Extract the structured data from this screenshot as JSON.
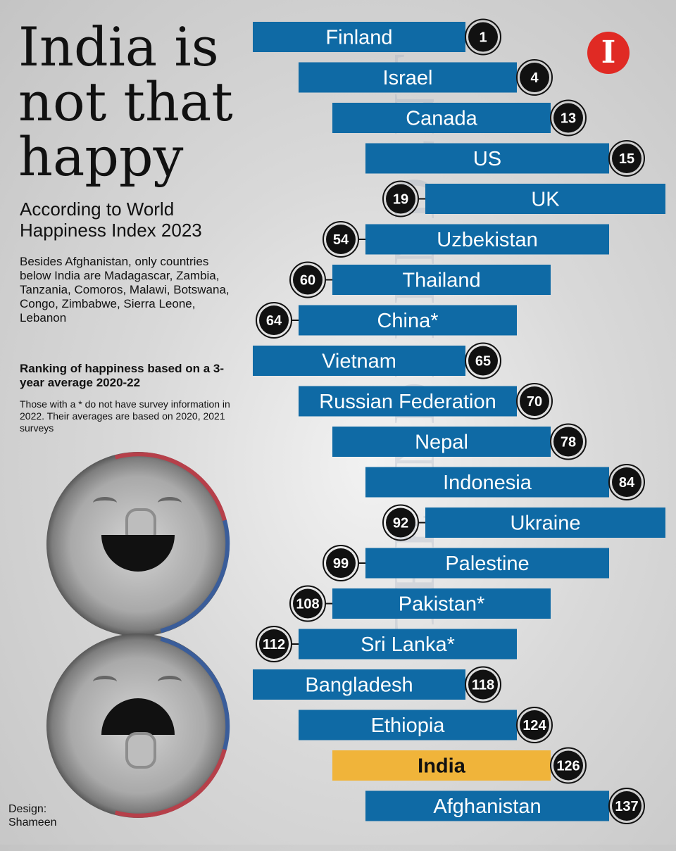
{
  "header": {
    "title": "India is not that happy",
    "subtitle": "According to World Happiness Index 2023",
    "note": "Besides Afghanistan, only countries below India are Madagascar, Zambia, Tanzania, Comoros, Malawi, Botswana, Congo, Zimbabwe, Sierra Leone, Lebanon",
    "method": "Ranking of happiness based on a 3-year average 2020-22",
    "footnote": "Those with a * do not have survey information in 2022. Their averages are based on 2020, 2021 surveys"
  },
  "credit": {
    "line1": "Design:",
    "line2": "Shameen"
  },
  "logo": {
    "letter": "I",
    "color": "#e02a24"
  },
  "watermark": "THE INDEPENDENT",
  "colors": {
    "bar": "#0f6aa5",
    "highlight": "#f0b43a",
    "badge": "#111111"
  },
  "chart_data": {
    "type": "bar",
    "categories": [
      "Finland",
      "Israel",
      "Canada",
      "US",
      "UK",
      "Uzbekistan",
      "Thailand",
      "China*",
      "Vietnam",
      "Russian Federation",
      "Nepal",
      "Indonesia",
      "Ukraine",
      "Palestine",
      "Pakistan*",
      "Sri Lanka*",
      "Bangladesh",
      "Ethiopia",
      "India",
      "Afghanistan"
    ],
    "values": [
      1,
      4,
      13,
      15,
      19,
      54,
      60,
      64,
      65,
      70,
      78,
      84,
      92,
      99,
      108,
      112,
      118,
      124,
      126,
      137
    ],
    "highlight": "India",
    "title": "",
    "xlabel": "",
    "ylabel": ""
  }
}
